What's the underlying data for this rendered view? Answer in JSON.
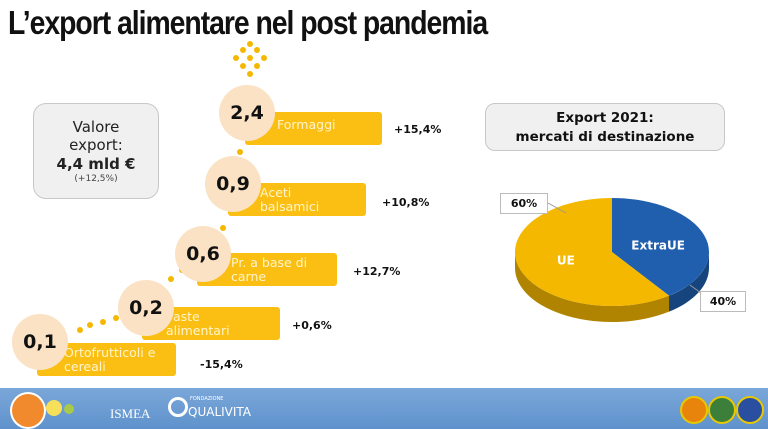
{
  "title": "L’export alimentare nel post pandemia",
  "summary": {
    "line1": "Valore",
    "line2": "export:",
    "value": "4,4 mld €",
    "change": "(+12,5%)"
  },
  "steps": [
    {
      "value": "2,4",
      "label": "Formaggi",
      "change": "+15,4%"
    },
    {
      "value": "0,9",
      "label": "Aceti balsamici",
      "change": "+10,8%"
    },
    {
      "value": "0,6",
      "label": "Pr. a base di carne",
      "change": "+12,7%"
    },
    {
      "value": "0,2",
      "label": "Paste alimentari",
      "change": "+0,6%"
    },
    {
      "value": "0,1",
      "label": "Ortofrutticoli e cereali",
      "change": "-15,4%"
    }
  ],
  "markets_box": {
    "line1": "Export 2021:",
    "line2": "mercati di destinazione"
  },
  "chart_data": {
    "type": "pie",
    "title": "Export 2021: mercati di destinazione",
    "categories": [
      "ExtraUE",
      "UE"
    ],
    "values": [
      40,
      60
    ],
    "value_labels": [
      "40%",
      "60%"
    ],
    "colors": [
      "#1f5fae",
      "#f5b800"
    ],
    "style": "3d"
  },
  "footer": {
    "logo1": "ISMEA",
    "logo2": "QUALIVITA",
    "logo2_sub": "FONDAZIONE"
  },
  "colors": {
    "bar": "#fbbf14",
    "circle": "#fbe2c4",
    "footer": "#6b9bd1"
  }
}
